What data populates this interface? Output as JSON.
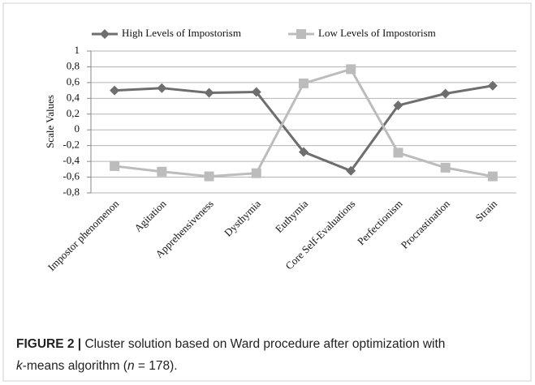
{
  "chart_data": {
    "type": "line",
    "ylabel": "Scale Values",
    "categories": [
      "Impostor phenomenon",
      "Agitation",
      "Apprehensiveness",
      "Dysthymia",
      "Euthymia",
      "Core Self-Evaluations",
      "Perfectionism",
      "Procrastination",
      "Strain"
    ],
    "series": [
      {
        "name": "High Levels of Impostorism",
        "color": "#6e6e6e",
        "marker": "diamond",
        "values": [
          0.5,
          0.53,
          0.47,
          0.48,
          -0.28,
          -0.52,
          0.31,
          0.46,
          0.56
        ]
      },
      {
        "name": "Low Levels of Impostorism",
        "color": "#bcbcbc",
        "marker": "square",
        "values": [
          -0.46,
          -0.53,
          -0.59,
          -0.55,
          0.59,
          0.77,
          -0.29,
          -0.48,
          -0.59
        ]
      }
    ],
    "ylim": [
      -0.8,
      1
    ],
    "yticks": [
      1,
      {
        "value": 0.8,
        "label": "0,8"
      },
      {
        "value": 0.6,
        "label": "0,6"
      },
      {
        "value": 0.4,
        "label": "0,4"
      },
      {
        "value": 0.2,
        "label": "0,2"
      },
      0,
      {
        "value": -0.2,
        "label": "-0,2"
      },
      {
        "value": -0.4,
        "label": "-0,4"
      },
      {
        "value": -0.6,
        "label": "-0,6"
      },
      {
        "value": -0.8,
        "label": "-0,8"
      }
    ],
    "grid": true,
    "legend": "top"
  },
  "caption": {
    "label": "FIGURE 2 |",
    "parts": [
      " Cluster solution based on Ward procedure after optimization with",
      "k",
      "-means algorithm (",
      "n",
      " = 178)."
    ]
  }
}
